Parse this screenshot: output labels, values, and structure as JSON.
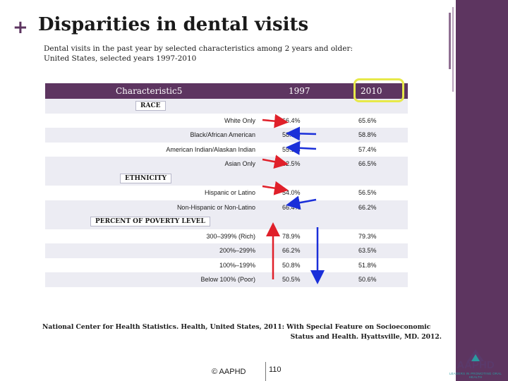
{
  "slide": {
    "title": "Disparities in dental visits",
    "subtitle_line1": "Dental visits in the past year  by selected characteristics among 2 years and older:",
    "subtitle_line2": "United States, selected years 1997-2010"
  },
  "table": {
    "headers": {
      "characteristic": "Characteristic5",
      "col1": "1997",
      "col2": "2010"
    },
    "sections": {
      "race": "RACE",
      "ethnicity": "ETHNICITY",
      "poverty": "PERCENT  OF POVERTY LEVEL"
    },
    "rows": [
      {
        "label": "White Only",
        "v1997": "66.4%",
        "v2010": "65.6%"
      },
      {
        "label": "Black/African American",
        "v1997": "58.9%",
        "v2010": "58.8%"
      },
      {
        "label": "American Indian/Alaskan Indian",
        "v1997": "55.1%",
        "v2010": "57.4%"
      },
      {
        "label": "Asian Only",
        "v1997": "62.5%",
        "v2010": "66.5%"
      },
      {
        "label": "Hispanic or Latino",
        "v1997": "54.0%",
        "v2010": "56.5%"
      },
      {
        "label": "Non-Hispanic or Non-Latino",
        "v1997": "66.4%",
        "v2010": "66.2%"
      },
      {
        "label": "300–399% (Rich)",
        "v1997": "78.9%",
        "v2010": "79.3%"
      },
      {
        "label": "200%–299%",
        "v1997": "66.2%",
        "v2010": "63.5%"
      },
      {
        "label": "100%–199%",
        "v1997": "50.8%",
        "v2010": "51.8%"
      },
      {
        "label": "Below 100% (Poor)",
        "v1997": "50.5%",
        "v2010": "50.6%"
      }
    ]
  },
  "footer": {
    "line1": "National Center for Health Statistics. Health, United States, 2011: With Special Feature on Socioeconomic",
    "line2": "Status and Health. Hyattsville, MD. 2012."
  },
  "copyright": "© AAPHD",
  "page_number": "110",
  "logo": {
    "word": "AAPHD",
    "tagline": "LEADERS IN PROMOTING ORAL HEALTH"
  },
  "colors": {
    "accent": "#5d3560",
    "highlight": "#e7e94a",
    "red_arrow": "#e0202a",
    "blue_arrow": "#1a2fd9"
  }
}
